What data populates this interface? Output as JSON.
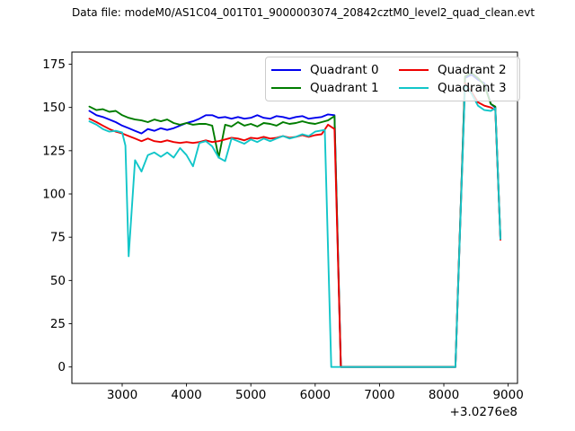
{
  "title": "Data file: modeM0/AS1C04_001T01_9000003074_20842cztM0_level2_quad_clean.evt",
  "chart_data": {
    "type": "line",
    "title": "Data file: modeM0/AS1C04_001T01_9000003074_20842cztM0_level2_quad_clean.evt",
    "xlabel": "",
    "ylabel": "",
    "x_offset_label": "+3.0276e8",
    "xlim": [
      2218,
      9145
    ],
    "ylim": [
      -9.5,
      182
    ],
    "xticks": [
      3000,
      4000,
      5000,
      6000,
      7000,
      8000,
      9000
    ],
    "yticks": [
      0,
      25,
      50,
      75,
      100,
      125,
      150,
      175
    ],
    "grid": false,
    "legend_position": "upper right",
    "background": "#ffffff",
    "spine_color": "#000000",
    "series": [
      {
        "name": "Quadrant 0",
        "color": "#0000ee",
        "points": [
          [
            2490,
            148
          ],
          [
            2600,
            145.5
          ],
          [
            2700,
            144.5
          ],
          [
            2800,
            143
          ],
          [
            2900,
            141.5
          ],
          [
            3000,
            139.5
          ],
          [
            3100,
            138
          ],
          [
            3200,
            136.5
          ],
          [
            3300,
            135
          ],
          [
            3400,
            137.5
          ],
          [
            3500,
            136.5
          ],
          [
            3600,
            138
          ],
          [
            3700,
            137
          ],
          [
            3800,
            138
          ],
          [
            3900,
            139.5
          ],
          [
            4000,
            141
          ],
          [
            4100,
            142
          ],
          [
            4200,
            143.5
          ],
          [
            4300,
            145.5
          ],
          [
            4400,
            145.5
          ],
          [
            4500,
            144
          ],
          [
            4600,
            144.5
          ],
          [
            4700,
            143.5
          ],
          [
            4800,
            144.5
          ],
          [
            4900,
            143.5
          ],
          [
            5000,
            144
          ],
          [
            5100,
            145.5
          ],
          [
            5200,
            144
          ],
          [
            5300,
            143.5
          ],
          [
            5400,
            145
          ],
          [
            5500,
            144.5
          ],
          [
            5600,
            143.5
          ],
          [
            5700,
            144.5
          ],
          [
            5800,
            145
          ],
          [
            5900,
            143.5
          ],
          [
            6000,
            144
          ],
          [
            6100,
            144.5
          ],
          [
            6200,
            146
          ],
          [
            6300,
            145.5
          ],
          [
            6400,
            0
          ],
          [
            6700,
            0
          ],
          [
            7200,
            0
          ],
          [
            7700,
            0
          ],
          [
            8180,
            0
          ],
          [
            8330,
            167
          ],
          [
            8430,
            169
          ],
          [
            8530,
            166
          ],
          [
            8630,
            164
          ],
          [
            8730,
            152
          ],
          [
            8800,
            150
          ],
          [
            8880,
            74
          ]
        ]
      },
      {
        "name": "Quadrant 1",
        "color": "#007d00",
        "points": [
          [
            2490,
            150.5
          ],
          [
            2600,
            148.5
          ],
          [
            2700,
            149
          ],
          [
            2800,
            147.5
          ],
          [
            2900,
            148
          ],
          [
            3000,
            145.5
          ],
          [
            3100,
            144
          ],
          [
            3200,
            143
          ],
          [
            3300,
            142.5
          ],
          [
            3400,
            141.5
          ],
          [
            3500,
            143
          ],
          [
            3600,
            142
          ],
          [
            3700,
            143
          ],
          [
            3800,
            141
          ],
          [
            3900,
            140
          ],
          [
            4000,
            141
          ],
          [
            4100,
            140
          ],
          [
            4200,
            140.5
          ],
          [
            4300,
            140.5
          ],
          [
            4400,
            139.5
          ],
          [
            4500,
            121
          ],
          [
            4600,
            140
          ],
          [
            4700,
            139
          ],
          [
            4800,
            141.5
          ],
          [
            4900,
            139.5
          ],
          [
            5000,
            140.5
          ],
          [
            5100,
            139
          ],
          [
            5200,
            141
          ],
          [
            5300,
            140.5
          ],
          [
            5400,
            139.5
          ],
          [
            5500,
            141.5
          ],
          [
            5600,
            140.5
          ],
          [
            5700,
            141
          ],
          [
            5800,
            142
          ],
          [
            5900,
            141
          ],
          [
            6000,
            140.5
          ],
          [
            6100,
            141.5
          ],
          [
            6200,
            142.5
          ],
          [
            6300,
            145
          ],
          [
            6400,
            0
          ],
          [
            6700,
            0
          ],
          [
            7200,
            0
          ],
          [
            7700,
            0
          ],
          [
            8180,
            0
          ],
          [
            8330,
            168
          ],
          [
            8430,
            170
          ],
          [
            8530,
            167
          ],
          [
            8630,
            163
          ],
          [
            8730,
            152
          ],
          [
            8800,
            150.5
          ],
          [
            8880,
            74.5
          ]
        ]
      },
      {
        "name": "Quadrant 2",
        "color": "#ee0000",
        "points": [
          [
            2490,
            143.5
          ],
          [
            2600,
            141.5
          ],
          [
            2700,
            139.5
          ],
          [
            2800,
            137.5
          ],
          [
            2900,
            136
          ],
          [
            3000,
            135
          ],
          [
            3100,
            133.5
          ],
          [
            3200,
            132
          ],
          [
            3300,
            130.5
          ],
          [
            3400,
            132
          ],
          [
            3500,
            130.5
          ],
          [
            3600,
            130
          ],
          [
            3700,
            131
          ],
          [
            3800,
            130
          ],
          [
            3900,
            129.5
          ],
          [
            4000,
            130
          ],
          [
            4100,
            129.5
          ],
          [
            4200,
            130
          ],
          [
            4300,
            131
          ],
          [
            4400,
            130
          ],
          [
            4500,
            130.5
          ],
          [
            4600,
            131.5
          ],
          [
            4700,
            132.5
          ],
          [
            4800,
            132
          ],
          [
            4900,
            131
          ],
          [
            5000,
            132.5
          ],
          [
            5100,
            132
          ],
          [
            5200,
            133
          ],
          [
            5300,
            132
          ],
          [
            5400,
            132.5
          ],
          [
            5500,
            133.5
          ],
          [
            5600,
            132.5
          ],
          [
            5700,
            133
          ],
          [
            5800,
            134
          ],
          [
            5900,
            133
          ],
          [
            6000,
            134
          ],
          [
            6100,
            134.5
          ],
          [
            6200,
            140
          ],
          [
            6300,
            137.5
          ],
          [
            6400,
            0
          ],
          [
            6700,
            0
          ],
          [
            7200,
            0
          ],
          [
            7700,
            0
          ],
          [
            8180,
            0
          ],
          [
            8330,
            164
          ],
          [
            8430,
            159
          ],
          [
            8530,
            153
          ],
          [
            8630,
            151
          ],
          [
            8730,
            150
          ],
          [
            8800,
            148.5
          ],
          [
            8880,
            73.5
          ]
        ]
      },
      {
        "name": "Quadrant 3",
        "color": "#12c6c9",
        "points": [
          [
            2490,
            142
          ],
          [
            2600,
            140
          ],
          [
            2700,
            137.5
          ],
          [
            2800,
            136
          ],
          [
            2900,
            136.5
          ],
          [
            3000,
            135.5
          ],
          [
            3050,
            128
          ],
          [
            3100,
            64
          ],
          [
            3200,
            119.5
          ],
          [
            3300,
            113
          ],
          [
            3400,
            122.5
          ],
          [
            3500,
            124
          ],
          [
            3600,
            121.5
          ],
          [
            3700,
            124
          ],
          [
            3800,
            121
          ],
          [
            3900,
            126.5
          ],
          [
            4000,
            122.5
          ],
          [
            4100,
            116
          ],
          [
            4200,
            129.5
          ],
          [
            4300,
            130.5
          ],
          [
            4400,
            127.5
          ],
          [
            4500,
            121
          ],
          [
            4600,
            119
          ],
          [
            4700,
            132
          ],
          [
            4800,
            130.5
          ],
          [
            4900,
            129
          ],
          [
            5000,
            131.5
          ],
          [
            5100,
            130
          ],
          [
            5200,
            132
          ],
          [
            5300,
            130.5
          ],
          [
            5400,
            132
          ],
          [
            5500,
            133.5
          ],
          [
            5600,
            132
          ],
          [
            5700,
            133
          ],
          [
            5800,
            134.5
          ],
          [
            5900,
            133.5
          ],
          [
            6000,
            136
          ],
          [
            6150,
            137
          ],
          [
            6250,
            0
          ],
          [
            6700,
            0
          ],
          [
            7200,
            0
          ],
          [
            7700,
            0
          ],
          [
            8180,
            0
          ],
          [
            8330,
            163
          ],
          [
            8430,
            158
          ],
          [
            8530,
            151
          ],
          [
            8630,
            148.5
          ],
          [
            8730,
            148
          ],
          [
            8800,
            149.5
          ],
          [
            8880,
            74
          ]
        ]
      }
    ]
  }
}
